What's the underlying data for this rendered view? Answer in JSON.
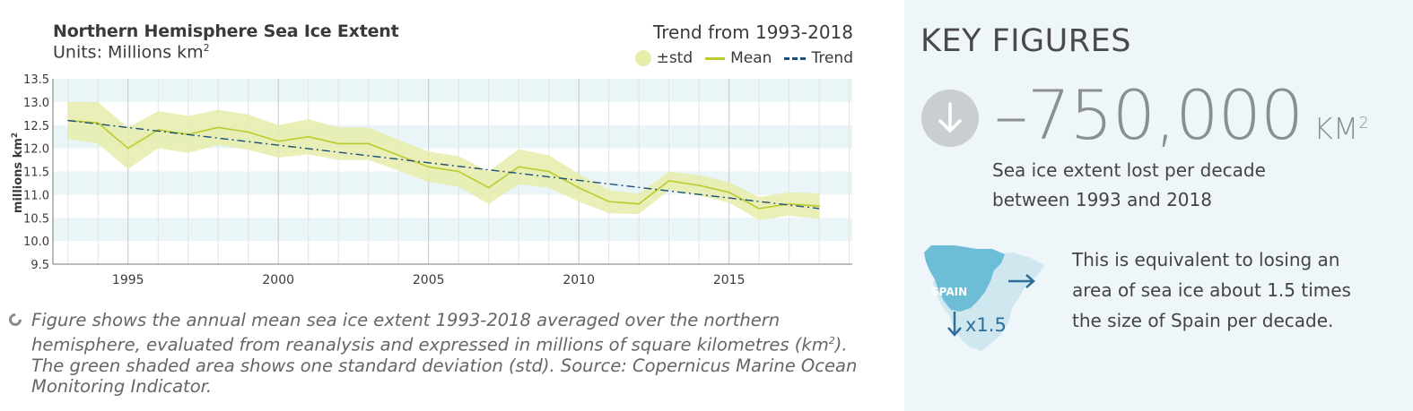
{
  "chart_data": {
    "type": "line",
    "title": "Northern Hemisphere Sea Ice Extent",
    "subtitle": "Units: Millions km²",
    "subtitle_text": "Units: Millions km",
    "subtitle_sup": "2",
    "trend_label": "Trend from 1993-2018",
    "ylabel": "millions km²",
    "ylabel_text": "millions km",
    "ylabel_sup": "2",
    "xlabel": "",
    "ylim": [
      9.5,
      13.5
    ],
    "xlim": [
      1992.5,
      2019.1
    ],
    "yticks": [
      "13.5",
      "13.0",
      "12.5",
      "12.0",
      "11.5",
      "11.0",
      "10.5",
      "10.0",
      "9.5"
    ],
    "ytick_values": [
      13.5,
      13.0,
      12.5,
      12.0,
      11.5,
      11.0,
      10.5,
      10.0,
      9.5
    ],
    "xticks": [
      "1995",
      "2000",
      "2005",
      "2010",
      "2015"
    ],
    "xtick_values": [
      1995,
      2000,
      2005,
      2010,
      2015
    ],
    "grid": true,
    "legend_position": "top-right",
    "legend": [
      {
        "name": "±std",
        "kind": "band"
      },
      {
        "name": "Mean",
        "kind": "line"
      },
      {
        "name": "Trend",
        "kind": "dashdot"
      }
    ],
    "x": [
      1993,
      1994,
      1995,
      1996,
      1997,
      1998,
      1999,
      2000,
      2001,
      2002,
      2003,
      2004,
      2005,
      2006,
      2007,
      2008,
      2009,
      2010,
      2011,
      2012,
      2013,
      2014,
      2015,
      2016,
      2017,
      2018
    ],
    "series": [
      {
        "name": "Mean",
        "values": [
          12.6,
          12.55,
          12.0,
          12.4,
          12.3,
          12.45,
          12.35,
          12.15,
          12.25,
          12.1,
          12.1,
          11.85,
          11.6,
          11.5,
          11.15,
          11.6,
          11.5,
          11.15,
          10.85,
          10.8,
          11.3,
          11.2,
          11.05,
          10.7,
          10.8,
          10.75
        ]
      },
      {
        "name": "±std",
        "values": [
          0.4,
          0.45,
          0.45,
          0.4,
          0.4,
          0.38,
          0.38,
          0.35,
          0.38,
          0.35,
          0.35,
          0.33,
          0.33,
          0.33,
          0.35,
          0.38,
          0.35,
          0.3,
          0.25,
          0.22,
          0.2,
          0.22,
          0.22,
          0.25,
          0.25,
          0.28
        ]
      },
      {
        "name": "Trend",
        "values": [
          12.6,
          10.7
        ],
        "x": [
          1993,
          2018
        ]
      }
    ],
    "colors": {
      "band": "#e6ecaa",
      "mean": "#b9cc2c",
      "trend": "#1c4e78",
      "stripe": "#eaf5f8",
      "axis": "#777777",
      "text": "#3a3a3a"
    }
  },
  "caption": {
    "before": "Figure shows the annual mean sea ice extent 1993-2018 averaged over the northern hemisphere, evaluated from reanalysis and expressed in millions of square kilometres (km",
    "sup": "2",
    "after": "). The green shaded area shows one standard deviation (std). Source: Copernicus Marine Ocean Monitoring Indicator.",
    "icon": "info-circle-icon"
  },
  "key_figures": {
    "title": "KEY FIGURES",
    "arrow_icon": "arrow-down-icon",
    "value": "–750,000",
    "unit": "KM",
    "unit_sup": "2",
    "description": "Sea ice extent lost per decade between 1993 and 2018",
    "map_label": "SPAIN",
    "multiplier": "x1.5",
    "equivalence": "This is equivalent to losing an area of sea ice about 1.5 times the size of Spain per decade."
  }
}
